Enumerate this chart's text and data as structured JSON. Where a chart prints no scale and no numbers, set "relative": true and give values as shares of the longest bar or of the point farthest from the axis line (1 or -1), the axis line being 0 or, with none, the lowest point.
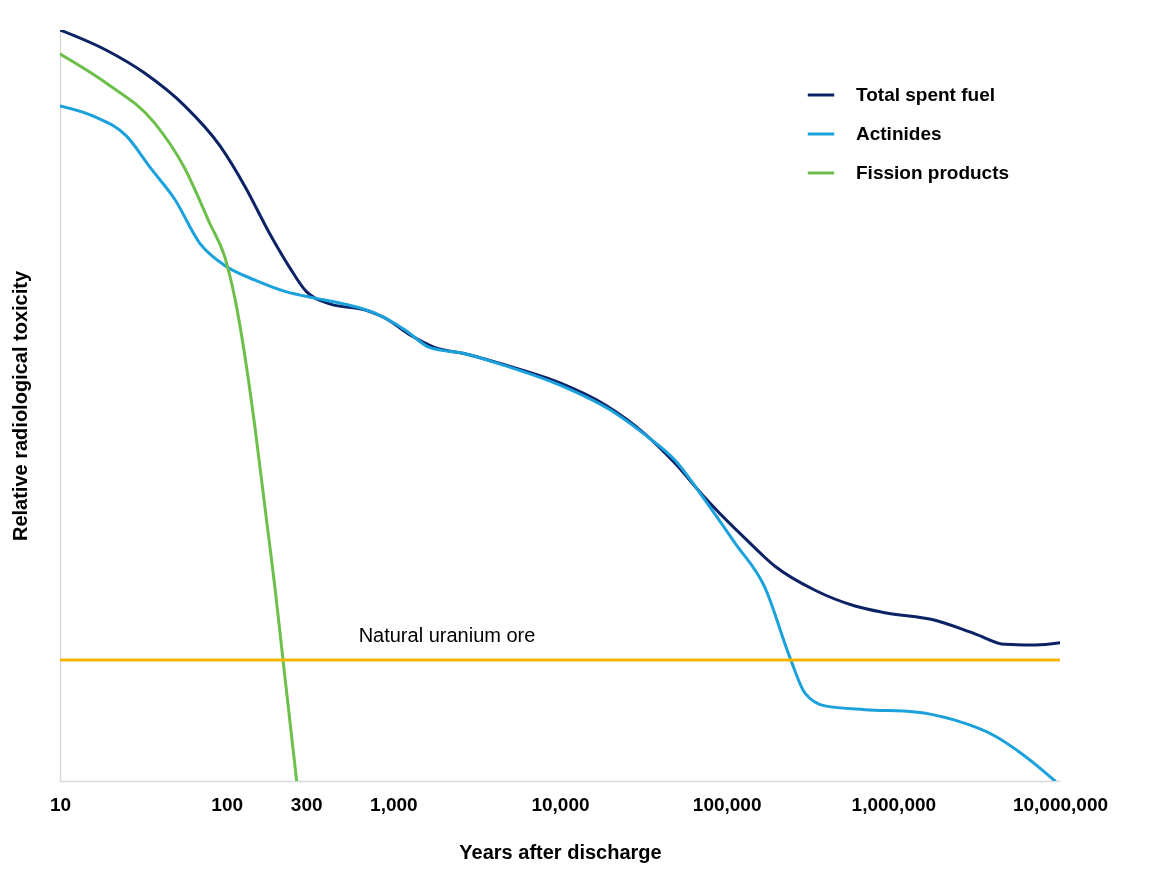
{
  "chart_data": {
    "type": "line",
    "relative": true,
    "xlabel": "Years after discharge",
    "ylabel": "Relative radiological toxicity",
    "log": "x",
    "xlim": [
      10,
      10000000
    ],
    "xticks": [
      10,
      100,
      300,
      {
        "value": 1000,
        "label": "1,000"
      },
      {
        "value": 10000,
        "label": "10,000"
      },
      {
        "value": 100000,
        "label": "100,000"
      },
      {
        "value": 1000000,
        "label": "1,000,000"
      },
      {
        "value": 10000000,
        "label": "10,000,000"
      }
    ],
    "legend": "top right",
    "grid": false,
    "series": [
      {
        "name": "Total spent fuel",
        "color": "#0b2265",
        "x": [
          10,
          19,
          32,
          56,
          91,
          130,
          180,
          240,
          300,
          420,
          680,
          900,
          1260,
          1780,
          2690,
          4680,
          10000,
          18600,
          32400,
          49000,
          74100,
          129000,
          195000,
          339000,
          589000,
          891000,
          1780000,
          3090000,
          4680000,
          7080000,
          10000000
        ],
        "values": [
          1,
          0.973,
          0.943,
          0.899,
          0.846,
          0.79,
          0.73,
          0.683,
          0.652,
          0.635,
          0.627,
          0.616,
          0.594,
          0.577,
          0.569,
          0.554,
          0.53,
          0.501,
          0.462,
          0.423,
          0.377,
          0.323,
          0.286,
          0.254,
          0.233,
          0.224,
          0.214,
          0.196,
          0.182,
          0.181,
          0.184
        ]
      },
      {
        "name": "Actinides",
        "color": "#1ba1dc",
        "x": [
          10,
          16,
          25,
          35,
          49,
          69,
          98,
          148,
          224,
          339,
          513,
          776,
          1170,
          1660,
          2690,
          4680,
          10000,
          21400,
          32400,
          49000,
          74100,
          112000,
          170000,
          240000,
          295000,
          389000,
          676000,
          1350000,
          2340000,
          4070000,
          6170000,
          9330000
        ],
        "values": [
          0.899,
          0.885,
          0.859,
          0.816,
          0.774,
          0.716,
          0.686,
          0.667,
          0.652,
          0.643,
          0.635,
          0.623,
          0.601,
          0.577,
          0.569,
          0.553,
          0.527,
          0.49,
          0.461,
          0.427,
          0.374,
          0.317,
          0.257,
          0.164,
          0.117,
          0.1,
          0.095,
          0.092,
          0.081,
          0.06,
          0.033,
          0
        ]
      },
      {
        "name": "Fission products",
        "color": "#6cbf4a",
        "x": [
          10,
          19,
          37,
          56,
          79,
          98,
          112,
          129,
          148,
          170,
          195,
          224,
          263
        ],
        "values": [
          0.968,
          0.929,
          0.876,
          0.816,
          0.743,
          0.696,
          0.643,
          0.564,
          0.47,
          0.363,
          0.257,
          0.137,
          0
        ]
      }
    ],
    "ref_lines": [
      {
        "axis": "y",
        "value": 0.161,
        "label": "Natural uranium ore",
        "color": "#f5b400"
      }
    ]
  }
}
